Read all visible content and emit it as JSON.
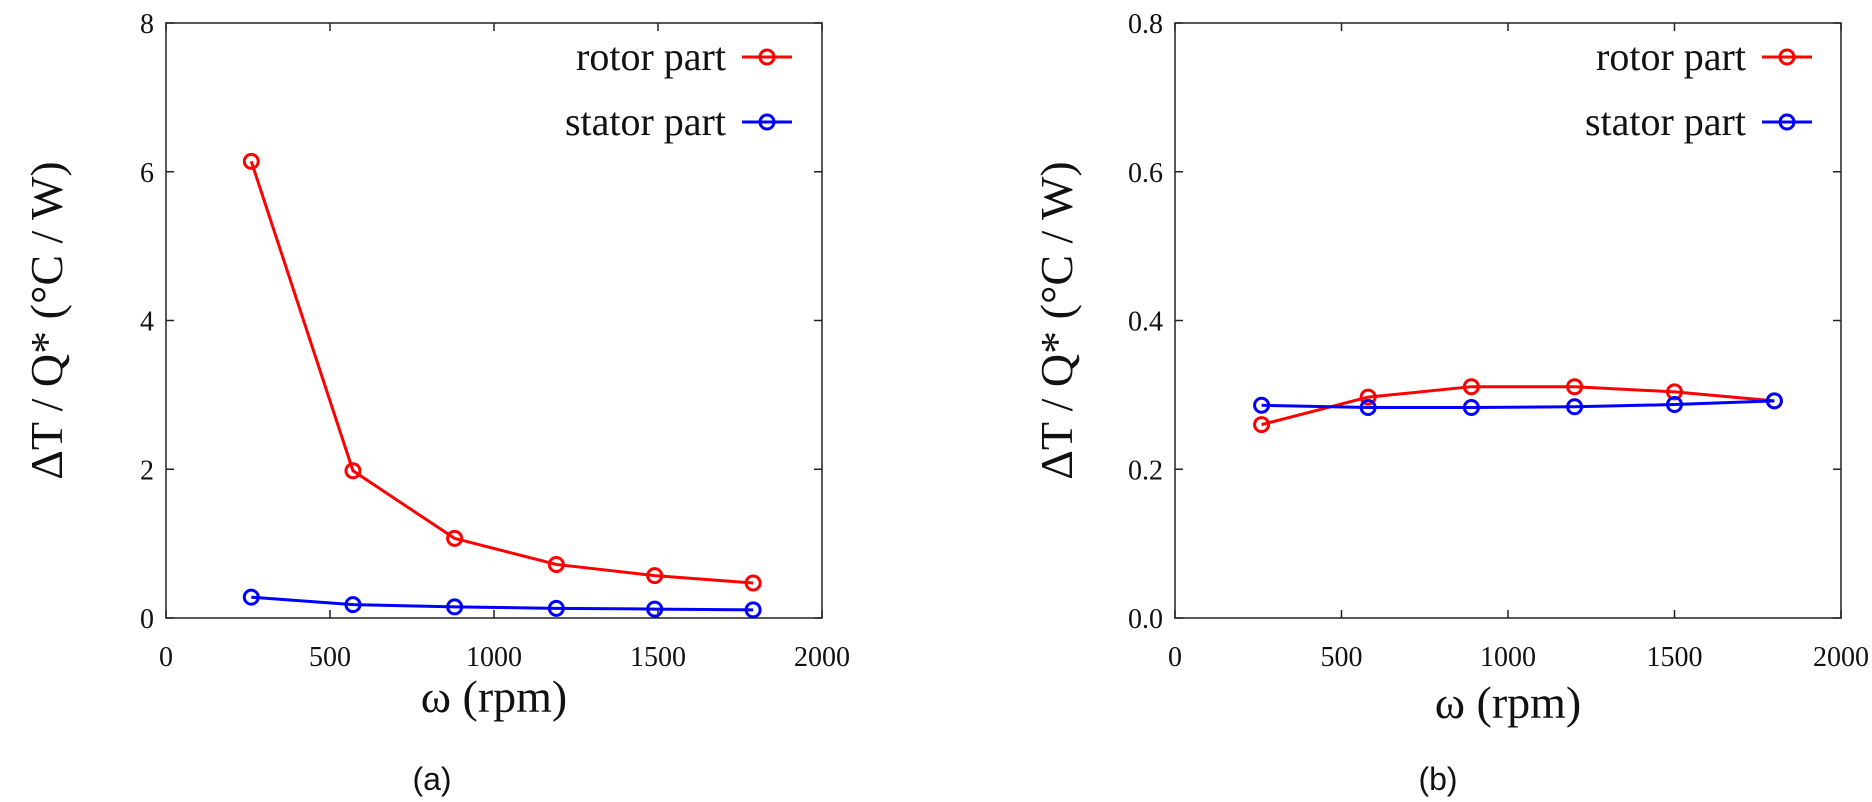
{
  "chart_data": [
    {
      "type": "line",
      "panel_label": "(a)",
      "xlabel": "ω (rpm)",
      "ylabel": "ΔT / Q* (°C / W)",
      "xlim": [
        0,
        2000
      ],
      "ylim": [
        0,
        8
      ],
      "xticks": [
        "0",
        "500",
        "1000",
        "1500",
        "2000"
      ],
      "yticks": [
        "0",
        "2",
        "4",
        "6",
        "8"
      ],
      "x": [
        260,
        570,
        880,
        1190,
        1490,
        1790
      ],
      "series": [
        {
          "name": "rotor part",
          "color": "#ff0000",
          "values": [
            6.14,
            1.98,
            1.07,
            0.72,
            0.57,
            0.47
          ]
        },
        {
          "name": "stator part",
          "color": "#0000ff",
          "values": [
            0.28,
            0.18,
            0.15,
            0.13,
            0.12,
            0.11
          ]
        }
      ],
      "legend": "top-right",
      "grid": false
    },
    {
      "type": "line",
      "panel_label": "(b)",
      "xlabel": "ω (rpm)",
      "ylabel": "ΔT / Q* (°C / W)",
      "xlim": [
        0,
        2000
      ],
      "ylim": [
        0.0,
        0.8
      ],
      "xticks": [
        "0",
        "500",
        "1000",
        "1500",
        "2000"
      ],
      "yticks": [
        "0.0",
        "0.2",
        "0.4",
        "0.6",
        "0.8"
      ],
      "x": [
        260,
        580,
        890,
        1200,
        1500,
        1800
      ],
      "series": [
        {
          "name": "rotor part",
          "color": "#ff0000",
          "values": [
            0.26,
            0.297,
            0.311,
            0.311,
            0.304,
            0.292
          ]
        },
        {
          "name": "stator part",
          "color": "#0000ff",
          "values": [
            0.286,
            0.283,
            0.283,
            0.284,
            0.287,
            0.292
          ]
        }
      ],
      "legend": "top-right",
      "grid": false
    }
  ]
}
